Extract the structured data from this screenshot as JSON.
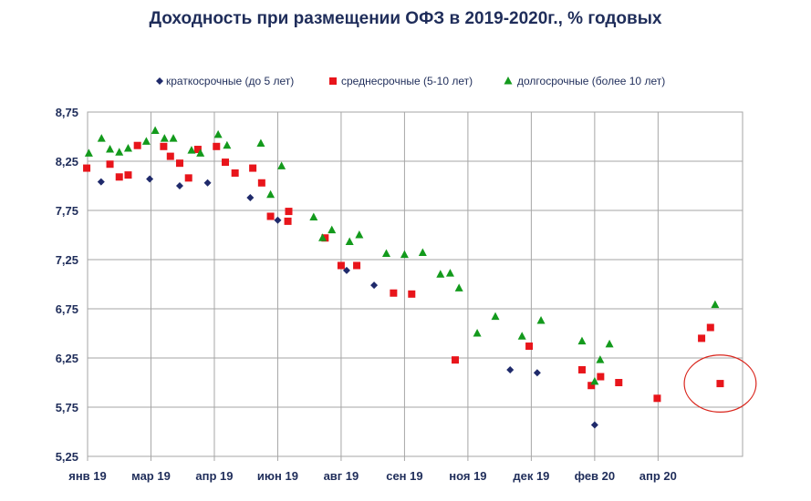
{
  "chart_data": {
    "type": "scatter",
    "title": "Доходность при размещении ОФЗ в 2019-2020г., % годовых",
    "xlabel": "",
    "ylabel": "",
    "x_axis": {
      "min": 0,
      "max": 15.5,
      "ticks": [
        {
          "value": 0,
          "label": "янв 19"
        },
        {
          "value": 1.5,
          "label": "мар 19"
        },
        {
          "value": 3,
          "label": "апр 19"
        },
        {
          "value": 4.5,
          "label": "июн 19"
        },
        {
          "value": 6,
          "label": "авг 19"
        },
        {
          "value": 7.5,
          "label": "сен 19"
        },
        {
          "value": 9,
          "label": "ноя 19"
        },
        {
          "value": 10.5,
          "label": "дек 19"
        },
        {
          "value": 12,
          "label": "фев 20"
        },
        {
          "value": 13.5,
          "label": "апр 20"
        }
      ]
    },
    "y_axis": {
      "min": 5.25,
      "max": 8.75,
      "ticks": [
        {
          "value": 5.25,
          "label": "5,25"
        },
        {
          "value": 5.75,
          "label": "5,75"
        },
        {
          "value": 6.25,
          "label": "6,25"
        },
        {
          "value": 6.75,
          "label": "6,75"
        },
        {
          "value": 7.25,
          "label": "7,25"
        },
        {
          "value": 7.75,
          "label": "7,75"
        },
        {
          "value": 8.25,
          "label": "8,25"
        },
        {
          "value": 8.75,
          "label": "8,75"
        }
      ]
    },
    "grid": true,
    "legend_position": "top",
    "series": [
      {
        "name": "краткосрочные (до 5 лет)",
        "marker": "diamond",
        "color": "#1f2a6b",
        "points": [
          [
            0.32,
            8.04
          ],
          [
            1.47,
            8.07
          ],
          [
            2.18,
            8.0
          ],
          [
            2.84,
            8.03
          ],
          [
            3.85,
            7.88
          ],
          [
            4.5,
            7.65
          ],
          [
            6.13,
            7.14
          ],
          [
            6.78,
            6.99
          ],
          [
            10.0,
            6.13
          ],
          [
            10.64,
            6.1
          ],
          [
            12.0,
            5.57
          ]
        ]
      },
      {
        "name": "среднесрочные (5-10 лет)",
        "marker": "square",
        "color": "#e8151b",
        "points": [
          [
            -0.02,
            8.18
          ],
          [
            0.53,
            8.22
          ],
          [
            0.75,
            8.09
          ],
          [
            0.96,
            8.11
          ],
          [
            1.18,
            8.41
          ],
          [
            1.8,
            8.4
          ],
          [
            2.18,
            8.23
          ],
          [
            2.61,
            8.37
          ],
          [
            1.96,
            8.3
          ],
          [
            2.39,
            8.08
          ],
          [
            3.05,
            8.4
          ],
          [
            3.26,
            8.24
          ],
          [
            3.49,
            8.13
          ],
          [
            3.91,
            8.18
          ],
          [
            4.12,
            8.03
          ],
          [
            4.33,
            7.69
          ],
          [
            4.76,
            7.74
          ],
          [
            4.74,
            7.64
          ],
          [
            5.62,
            7.47
          ],
          [
            6.0,
            7.19
          ],
          [
            6.37,
            7.19
          ],
          [
            7.24,
            6.91
          ],
          [
            7.67,
            6.9
          ],
          [
            8.7,
            6.23
          ],
          [
            10.45,
            6.37
          ],
          [
            11.7,
            6.13
          ],
          [
            11.92,
            5.97
          ],
          [
            12.14,
            6.06
          ],
          [
            12.57,
            6.0
          ],
          [
            13.48,
            5.84
          ],
          [
            14.53,
            6.45
          ],
          [
            14.74,
            6.56
          ],
          [
            14.97,
            5.99
          ]
        ]
      },
      {
        "name": "долгосрочные (более 10 лет)",
        "marker": "triangle",
        "color": "#139a1c",
        "points": [
          [
            0.03,
            8.33
          ],
          [
            0.33,
            8.48
          ],
          [
            0.53,
            8.37
          ],
          [
            0.75,
            8.34
          ],
          [
            0.96,
            8.38
          ],
          [
            1.39,
            8.45
          ],
          [
            1.6,
            8.56
          ],
          [
            1.82,
            8.48
          ],
          [
            2.03,
            8.48
          ],
          [
            2.46,
            8.36
          ],
          [
            2.67,
            8.33
          ],
          [
            3.09,
            8.52
          ],
          [
            3.3,
            8.41
          ],
          [
            4.1,
            8.43
          ],
          [
            4.33,
            7.91
          ],
          [
            4.59,
            8.2
          ],
          [
            5.35,
            7.68
          ],
          [
            5.56,
            7.47
          ],
          [
            5.78,
            7.55
          ],
          [
            6.2,
            7.43
          ],
          [
            6.43,
            7.5
          ],
          [
            7.07,
            7.31
          ],
          [
            7.5,
            7.3
          ],
          [
            7.93,
            7.32
          ],
          [
            8.35,
            7.1
          ],
          [
            8.58,
            7.11
          ],
          [
            8.79,
            6.96
          ],
          [
            9.22,
            6.5
          ],
          [
            9.65,
            6.67
          ],
          [
            10.28,
            6.47
          ],
          [
            10.73,
            6.63
          ],
          [
            11.7,
            6.42
          ],
          [
            12.13,
            6.23
          ],
          [
            12.35,
            6.39
          ],
          [
            12.0,
            6.01
          ],
          [
            14.85,
            6.79
          ]
        ]
      }
    ],
    "annotations": [
      {
        "type": "ellipse",
        "target_series": "среднесрочные (5-10 лет)",
        "cx": 14.97,
        "cy": 5.99,
        "rx": 0.85,
        "ry": 0.29,
        "color": "#d9251c"
      }
    ]
  }
}
